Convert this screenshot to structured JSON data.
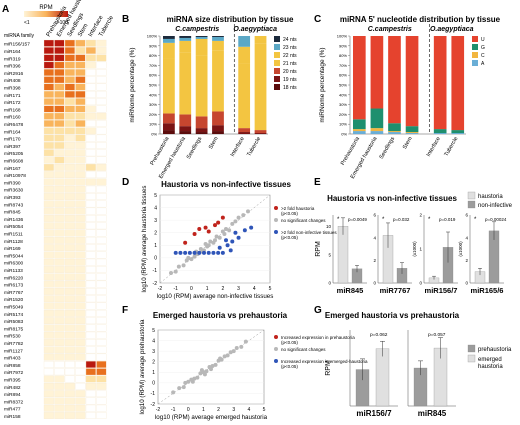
{
  "panels": {
    "A": {
      "letter": "A",
      "rpm_label": "RPM",
      "scale_low": "<1",
      "scale_high": ">100",
      "row_header": "miRNA family",
      "columns": [
        "Prehaustoria",
        "Emerged haustoria",
        "Seedlings",
        "Stem",
        "Interface",
        "Tubercle"
      ],
      "rows": [
        "miR156/157",
        "miR164",
        "miR319",
        "miR396",
        "miR2916",
        "miR408",
        "miR398",
        "miR171",
        "miR172",
        "miR168",
        "miR160",
        "miR6478",
        "miR164",
        "miR170",
        "miR397",
        "miR5205",
        "miR6608",
        "miR167",
        "miR10978",
        "miR390",
        "miR3630",
        "miR393",
        "miR8743",
        "miR845",
        "miR1436",
        "miR5054",
        "miR1511",
        "miR1128",
        "miR169",
        "miR5044",
        "miR6300",
        "miR1133",
        "miR6220",
        "miR6173",
        "miR7767",
        "miR1520",
        "miR5049",
        "miR5174",
        "miR5083",
        "miR8175",
        "miR530",
        "miR7782",
        "miR1127",
        "miR403",
        "miR858",
        "miR7972",
        "miR395",
        "miR482",
        "miR894",
        "miR8372",
        "miR477",
        "miR158"
      ],
      "values": [
        [
          5,
          5,
          4,
          3,
          2,
          1
        ],
        [
          5,
          5,
          4,
          2,
          3,
          1
        ],
        [
          5,
          5,
          4,
          4,
          2,
          2
        ],
        [
          5,
          4,
          3,
          3,
          1,
          0
        ],
        [
          4,
          4,
          3,
          3,
          0,
          0
        ],
        [
          4,
          4,
          3,
          4,
          0,
          0
        ],
        [
          4,
          3,
          4,
          3,
          0,
          0
        ],
        [
          3,
          3,
          4,
          4,
          0,
          0
        ],
        [
          3,
          3,
          2,
          3,
          0,
          0
        ],
        [
          4,
          4,
          3,
          3,
          1,
          0
        ],
        [
          3,
          3,
          2,
          2,
          1,
          1
        ],
        [
          3,
          3,
          2,
          3,
          0,
          0
        ],
        [
          2,
          2,
          2,
          2,
          1,
          0
        ],
        [
          2,
          2,
          1,
          2,
          0,
          0
        ],
        [
          2,
          2,
          1,
          1,
          0,
          0
        ],
        [
          2,
          1,
          1,
          1,
          0,
          0
        ],
        [
          1,
          2,
          1,
          1,
          0,
          0
        ],
        [
          2,
          1,
          1,
          1,
          2,
          1
        ],
        [
          1,
          1,
          1,
          1,
          0,
          0
        ],
        [
          1,
          1,
          1,
          1,
          1,
          1
        ],
        [
          1,
          1,
          1,
          1,
          0,
          0
        ],
        [
          1,
          1,
          1,
          1,
          0,
          0
        ],
        [
          1,
          1,
          1,
          1,
          0,
          0
        ],
        [
          1,
          1,
          1,
          1,
          0,
          0
        ],
        [
          1,
          1,
          1,
          1,
          0,
          0
        ],
        [
          1,
          1,
          1,
          1,
          0,
          0
        ],
        [
          1,
          1,
          1,
          1,
          0,
          0
        ],
        [
          1,
          1,
          1,
          1,
          0,
          0
        ],
        [
          1,
          1,
          1,
          1,
          0,
          0
        ],
        [
          1,
          1,
          1,
          1,
          0,
          0
        ],
        [
          1,
          1,
          1,
          1,
          0,
          0
        ],
        [
          1,
          1,
          1,
          1,
          0,
          0
        ],
        [
          1,
          1,
          1,
          1,
          0,
          0
        ],
        [
          1,
          1,
          1,
          1,
          0,
          0
        ],
        [
          1,
          1,
          1,
          1,
          0,
          0
        ],
        [
          1,
          1,
          1,
          1,
          0,
          0
        ],
        [
          1,
          1,
          1,
          1,
          0,
          0
        ],
        [
          1,
          1,
          1,
          1,
          0,
          0
        ],
        [
          1,
          1,
          1,
          1,
          0,
          0
        ],
        [
          1,
          1,
          1,
          1,
          0,
          0
        ],
        [
          1,
          1,
          1,
          1,
          0,
          0
        ],
        [
          1,
          1,
          1,
          1,
          0,
          0
        ],
        [
          1,
          1,
          1,
          1,
          0,
          0
        ],
        [
          1,
          1,
          1,
          1,
          0,
          0
        ],
        [
          0,
          0,
          0,
          0,
          5,
          4
        ],
        [
          0,
          0,
          0,
          0,
          4,
          4
        ],
        [
          1,
          1,
          0,
          0,
          2,
          2
        ],
        [
          1,
          1,
          1,
          0,
          1,
          1
        ],
        [
          1,
          1,
          1,
          1,
          0,
          0
        ],
        [
          1,
          1,
          1,
          1,
          0,
          0
        ],
        [
          1,
          1,
          1,
          1,
          0,
          0
        ],
        [
          1,
          1,
          1,
          1,
          0,
          0
        ]
      ],
      "palette": [
        "#ffffff",
        "#fff3d6",
        "#fde2a6",
        "#f9b45c",
        "#e8701e",
        "#b9190f"
      ]
    },
    "B": {
      "letter": "B",
      "title": "miRNA size distribution by tissue",
      "species1": "C.campestris",
      "species2": "O.aegyptiaca",
      "ylabel": "miRNome percentage (%)",
      "ytick_suffix": "%",
      "categories": [
        "Prehaustoria",
        "Emerged haustoria",
        "Seedlings",
        "Stem",
        "Interface",
        "Tubercle"
      ],
      "legend": [
        {
          "label": "24 nts",
          "color": "#1c2a3c"
        },
        {
          "label": "23 nts",
          "color": "#5ba8c6"
        },
        {
          "label": "22 nts",
          "color": "#f3c541"
        },
        {
          "label": "21 nts",
          "color": "#f3c541"
        },
        {
          "label": "20 nts",
          "color": "#c6462f"
        },
        {
          "label": "19 nts",
          "color": "#7a1414"
        },
        {
          "label": "18 nts",
          "color": "#5b0c0c"
        }
      ],
      "stacks": [
        [
          3,
          4,
          16,
          56,
          10,
          7,
          4
        ],
        [
          2,
          3,
          12,
          63,
          12,
          5,
          3
        ],
        [
          1,
          2,
          17,
          62,
          12,
          4,
          2
        ],
        [
          1,
          4,
          10,
          62,
          14,
          6,
          3
        ],
        [
          0,
          11,
          17,
          66,
          4,
          2,
          0
        ],
        [
          0,
          0,
          8,
          88,
          3,
          1,
          0
        ]
      ]
    },
    "C": {
      "letter": "C",
      "title": "miRNA 5' nucleotide distribution by tissue",
      "species1": "C.campestris",
      "species2": "O.aegyptiaca",
      "ylabel": "miRNome percentage (%)",
      "ytick_suffix": "%",
      "categories": [
        "Prehaustoria",
        "Emerged haustoria",
        "Seedlings",
        "Stem",
        "Interface",
        "Tubercle"
      ],
      "legend": [
        {
          "label": "U",
          "color": "#e5432e"
        },
        {
          "label": "G",
          "color": "#1e8f6e"
        },
        {
          "label": "C",
          "color": "#f2b640"
        },
        {
          "label": "A",
          "color": "#6aaed6"
        }
      ],
      "stacks": [
        [
          85,
          10,
          2,
          3
        ],
        [
          74,
          20,
          3,
          3
        ],
        [
          89,
          8,
          1,
          2
        ],
        [
          92,
          6,
          1,
          1
        ],
        [
          95,
          4,
          0,
          1
        ],
        [
          96,
          3,
          0,
          1
        ]
      ]
    },
    "D": {
      "letter": "D",
      "title": "Haustoria vs non-infective tissues",
      "xlabel": "log10 (RPM) average non-infective tissues",
      "ylabel": "log10 (RPM) average haustoria tissues",
      "xlim": [
        -2,
        5
      ],
      "ylim": [
        -2,
        5
      ],
      "legend": [
        {
          "label": ">2 fold haustoria (p<0.05)",
          "color": "#c0231c"
        },
        {
          "label": "no significant changes",
          "color": "#b8b8b8"
        },
        {
          "label": ">2 fold non-infective tissues (p<0.05)",
          "color": "#2f55b8"
        }
      ],
      "points": {
        "gray": [
          [
            -1.3,
            -1.2
          ],
          [
            -1.0,
            -1.1
          ],
          [
            -0.8,
            -0.7
          ],
          [
            -0.5,
            -0.6
          ],
          [
            -0.3,
            -0.2
          ],
          [
            0.0,
            -0.1
          ],
          [
            0.2,
            0.1
          ],
          [
            0.4,
            0.3
          ],
          [
            0.6,
            0.7
          ],
          [
            0.8,
            0.6
          ],
          [
            1.0,
            0.9
          ],
          [
            1.2,
            1.3
          ],
          [
            1.4,
            1.2
          ],
          [
            1.6,
            1.7
          ],
          [
            1.8,
            1.6
          ],
          [
            2.0,
            2.1
          ],
          [
            2.2,
            2.3
          ],
          [
            2.4,
            2.2
          ],
          [
            2.6,
            2.7
          ],
          [
            2.8,
            2.9
          ],
          [
            3.0,
            3.2
          ],
          [
            3.3,
            3.4
          ],
          [
            3.6,
            3.7
          ],
          [
            0.3,
            0.5
          ],
          [
            0.9,
            1.1
          ],
          [
            1.5,
            1.4
          ],
          [
            2.1,
            1.9
          ],
          [
            -0.2,
            0.0
          ],
          [
            0.7,
            0.5
          ],
          [
            1.1,
            1.0
          ]
        ],
        "red": [
          [
            0.2,
            1.9
          ],
          [
            0.5,
            2.3
          ],
          [
            0.9,
            2.4
          ],
          [
            1.1,
            2.1
          ],
          [
            1.5,
            2.6
          ],
          [
            -0.4,
            1.2
          ],
          [
            2.0,
            3.2
          ],
          [
            1.7,
            2.8
          ]
        ],
        "blue": [
          [
            -1.0,
            0.4
          ],
          [
            -0.7,
            0.4
          ],
          [
            -0.4,
            0.4
          ],
          [
            -0.1,
            0.4
          ],
          [
            0.2,
            0.4
          ],
          [
            0.5,
            0.4
          ],
          [
            0.8,
            0.4
          ],
          [
            1.1,
            0.4
          ],
          [
            1.4,
            0.4
          ],
          [
            1.7,
            0.4
          ],
          [
            2.0,
            0.4
          ],
          [
            1.8,
            0.8
          ],
          [
            2.3,
            1.0
          ],
          [
            2.6,
            1.3
          ],
          [
            3.0,
            1.6
          ],
          [
            2.8,
            2.0
          ],
          [
            3.4,
            2.2
          ],
          [
            2.5,
            0.6
          ],
          [
            3.8,
            2.4
          ],
          [
            2.2,
            1.4
          ]
        ]
      }
    },
    "E": {
      "letter": "E",
      "title": "Haustoria vs non-infective tissues",
      "ylabel": "RPM",
      "legend": [
        {
          "label": "haustoria",
          "color": "#e0e0e0"
        },
        {
          "label": "non-infective",
          "color": "#9c9c9c"
        }
      ],
      "groups": [
        {
          "name": "miR845",
          "pval": "p=0.0049",
          "scale_label": "",
          "values": [
            10,
            2.5
          ],
          "err": [
            1.5,
            0.6
          ],
          "ymax": 12,
          "ticks": [
            "0",
            "5",
            "10"
          ],
          "tick_vals": [
            0,
            5,
            10
          ]
        },
        {
          "name": "miR7767",
          "pval": "p=0.032",
          "scale_label": "",
          "values": [
            4.2,
            1.3
          ],
          "err": [
            1.1,
            0.5
          ],
          "ymax": 6,
          "ticks": [
            "0",
            "2",
            "4",
            "6"
          ],
          "tick_vals": [
            0,
            2,
            4,
            6
          ]
        },
        {
          "name": "miR156/7",
          "pval": "p=0.019",
          "scale_label": "(x1000)",
          "values": [
            0.15,
            1.05
          ],
          "err": [
            0.05,
            0.45
          ],
          "ymax": 2,
          "ticks": [
            "0",
            "1",
            "2"
          ],
          "tick_vals": [
            0,
            1,
            2
          ]
        },
        {
          "name": "miR165/6",
          "pval": "p=0.00024",
          "scale_label": "(x1000)",
          "values": [
            1.0,
            4.6
          ],
          "err": [
            0.3,
            0.8
          ],
          "ymax": 6,
          "ticks": [
            "0",
            "2",
            "4",
            "6"
          ],
          "tick_vals": [
            0,
            2,
            4,
            6
          ]
        }
      ]
    },
    "F": {
      "letter": "F",
      "title": "Emerged haustoria vs prehaustoria",
      "xlabel": "log10 (RPM) average emerged haustoria",
      "ylabel": "log10 (RPM) average prehaustoria",
      "xlim": [
        -2,
        5
      ],
      "ylim": [
        -2,
        5
      ],
      "legend": [
        {
          "label": "Increased expression in prehaustoria (p<0.05)",
          "color": "#c0231c"
        },
        {
          "label": "no significant changes",
          "color": "#b8b8b8"
        },
        {
          "label": "Increased expression in emerged-haustoria (p<0.05)",
          "color": "#2f55b8"
        }
      ],
      "points": {
        "gray": [
          [
            -1.0,
            -0.9
          ],
          [
            -0.6,
            -0.5
          ],
          [
            -0.3,
            -0.4
          ],
          [
            0.0,
            0.1
          ],
          [
            0.2,
            0.3
          ],
          [
            0.4,
            0.4
          ],
          [
            0.6,
            0.5
          ],
          [
            0.8,
            0.9
          ],
          [
            1.0,
            1.0
          ],
          [
            1.2,
            1.1
          ],
          [
            1.4,
            1.5
          ],
          [
            1.6,
            1.6
          ],
          [
            1.8,
            1.7
          ],
          [
            2.0,
            2.1
          ],
          [
            2.2,
            2.2
          ],
          [
            2.4,
            2.5
          ],
          [
            2.6,
            2.6
          ],
          [
            2.8,
            2.9
          ],
          [
            3.0,
            3.0
          ],
          [
            3.2,
            3.3
          ],
          [
            3.5,
            3.4
          ],
          [
            3.8,
            3.9
          ],
          [
            0.3,
            0.1
          ],
          [
            0.9,
            1.2
          ],
          [
            1.5,
            1.3
          ],
          [
            2.1,
            2.3
          ],
          [
            -0.2,
            0.0
          ],
          [
            1.1,
            0.8
          ]
        ],
        "red": [],
        "blue": []
      }
    },
    "G": {
      "letter": "G",
      "title": "Emerged haustoria vs prehaustoria",
      "ylabel": "RPM",
      "legend": [
        {
          "label": "prehaustoria",
          "color": "#9c9c9c"
        },
        {
          "label": "emerged haustoria",
          "color": "#e0e0e0"
        }
      ],
      "groups": [
        {
          "name": "miR156/7",
          "pval": "p=0.062",
          "values": [
            120,
            188
          ],
          "err": [
            35,
            25
          ],
          "ymax": 250
        },
        {
          "name": "miR845",
          "pval": "p=0.057",
          "values": [
            8,
            12.2
          ],
          "err": [
            1.5,
            2.2
          ],
          "ymax": 16
        }
      ]
    }
  }
}
